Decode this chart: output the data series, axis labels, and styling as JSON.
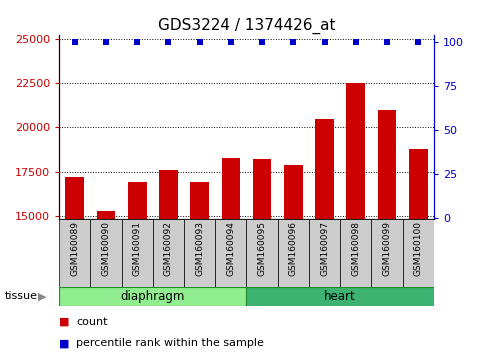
{
  "title": "GDS3224 / 1374426_at",
  "samples": [
    "GSM160089",
    "GSM160090",
    "GSM160091",
    "GSM160092",
    "GSM160093",
    "GSM160094",
    "GSM160095",
    "GSM160096",
    "GSM160097",
    "GSM160098",
    "GSM160099",
    "GSM160100"
  ],
  "counts": [
    17200,
    15300,
    16900,
    17600,
    16900,
    18300,
    18200,
    17900,
    20500,
    22500,
    21000,
    18800
  ],
  "percentiles": [
    100,
    100,
    100,
    100,
    100,
    100,
    100,
    100,
    100,
    100,
    100,
    100
  ],
  "tissue_groups": [
    {
      "label": "diaphragm",
      "start": 0,
      "end": 6,
      "color": "#90EE90",
      "edgecolor": "#228B22"
    },
    {
      "label": "heart",
      "start": 6,
      "end": 12,
      "color": "#3CB371",
      "edgecolor": "#228B22"
    }
  ],
  "ylim_left": [
    14800,
    25200
  ],
  "ylim_right": [
    -1,
    104
  ],
  "yticks_left": [
    15000,
    17500,
    20000,
    22500,
    25000
  ],
  "yticks_right": [
    0,
    25,
    50,
    75,
    100
  ],
  "bar_color": "#CC0000",
  "dot_color": "#0000CC",
  "dot_size": 25,
  "left_tick_color": "#CC0000",
  "right_tick_color": "#0000CC",
  "title_fontsize": 11,
  "bar_width": 0.6,
  "legend_red_label": "count",
  "legend_blue_label": "percentile rank within the sample",
  "sample_box_color": "#CCCCCC",
  "tissue_label": "tissue"
}
